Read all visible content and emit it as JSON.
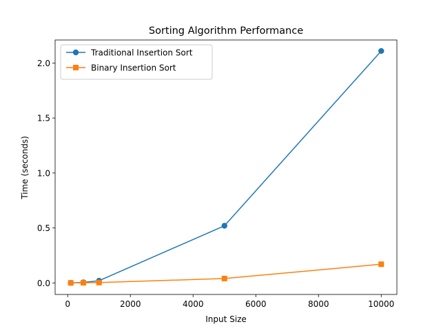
{
  "chart_data": {
    "type": "line",
    "title": "Sorting Algorithm Performance",
    "xlabel": "Input Size",
    "ylabel": "Time (seconds)",
    "xlim": [
      -400,
      10500
    ],
    "ylim": [
      -0.105,
      2.21
    ],
    "xticks": [
      0,
      2000,
      4000,
      6000,
      8000,
      10000
    ],
    "xtick_labels": [
      "0",
      "2000",
      "4000",
      "6000",
      "8000",
      "10000"
    ],
    "yticks": [
      0.0,
      0.5,
      1.0,
      1.5,
      2.0
    ],
    "ytick_labels": [
      "0.0",
      "0.5",
      "1.0",
      "1.5",
      "2.0"
    ],
    "grid": false,
    "legend_position": "top-left",
    "series": [
      {
        "name": "Traditional Insertion Sort",
        "color": "#1f77b4",
        "marker": "circle",
        "x": [
          100,
          500,
          1000,
          5000,
          10000
        ],
        "y": [
          0.0003,
          0.005,
          0.02,
          0.52,
          2.11
        ]
      },
      {
        "name": "Binary Insertion Sort",
        "color": "#ff7f0e",
        "marker": "square",
        "x": [
          100,
          500,
          1000,
          5000,
          10000
        ],
        "y": [
          0.0001,
          0.001,
          0.003,
          0.04,
          0.17
        ]
      }
    ]
  }
}
